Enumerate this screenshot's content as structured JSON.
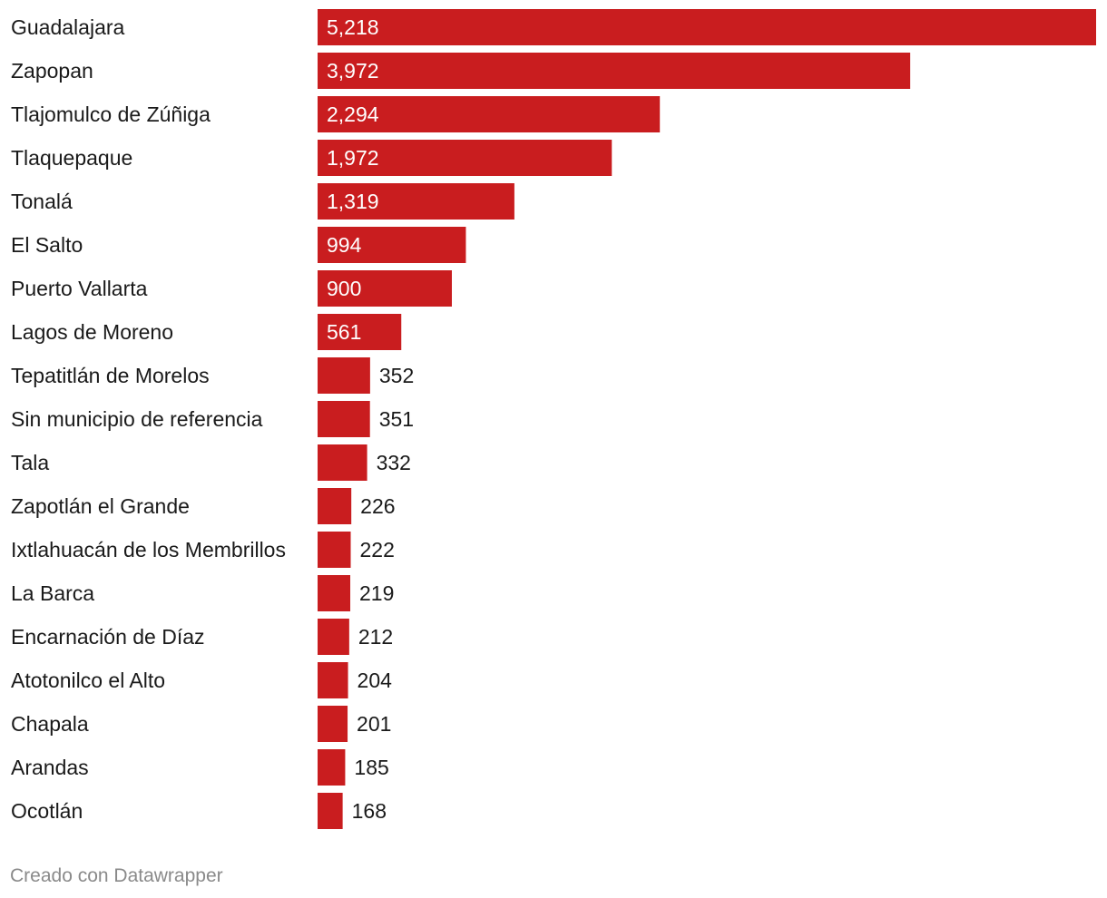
{
  "chart_data": {
    "type": "bar",
    "orientation": "horizontal",
    "bar_color": "#c91d1f",
    "categories": [
      "Guadalajara",
      "Zapopan",
      "Tlajomulco de Zúñiga",
      "Tlaquepaque",
      "Tonalá",
      "El Salto",
      "Puerto Vallarta",
      "Lagos de Moreno",
      "Tepatitlán de Morelos",
      "Sin municipio de referencia",
      "Tala",
      "Zapotlán el Grande",
      "Ixtlahuacán de los Membrillos",
      "La Barca",
      "Encarnación de Díaz",
      "Atotonilco el Alto",
      "Chapala",
      "Arandas",
      "Ocotlán"
    ],
    "values": [
      5218,
      3972,
      2294,
      1972,
      1319,
      994,
      900,
      561,
      352,
      351,
      332,
      226,
      222,
      219,
      212,
      204,
      201,
      185,
      168
    ],
    "value_labels": [
      "5,218",
      "3,972",
      "2,294",
      "1,972",
      "1,319",
      "994",
      "900",
      "561",
      "352",
      "351",
      "332",
      "226",
      "222",
      "219",
      "212",
      "204",
      "201",
      "185",
      "168"
    ],
    "xlim": [
      0,
      5218
    ],
    "grid": false,
    "legend": "none"
  },
  "footer": {
    "credit": "Creado con Datawrapper"
  }
}
